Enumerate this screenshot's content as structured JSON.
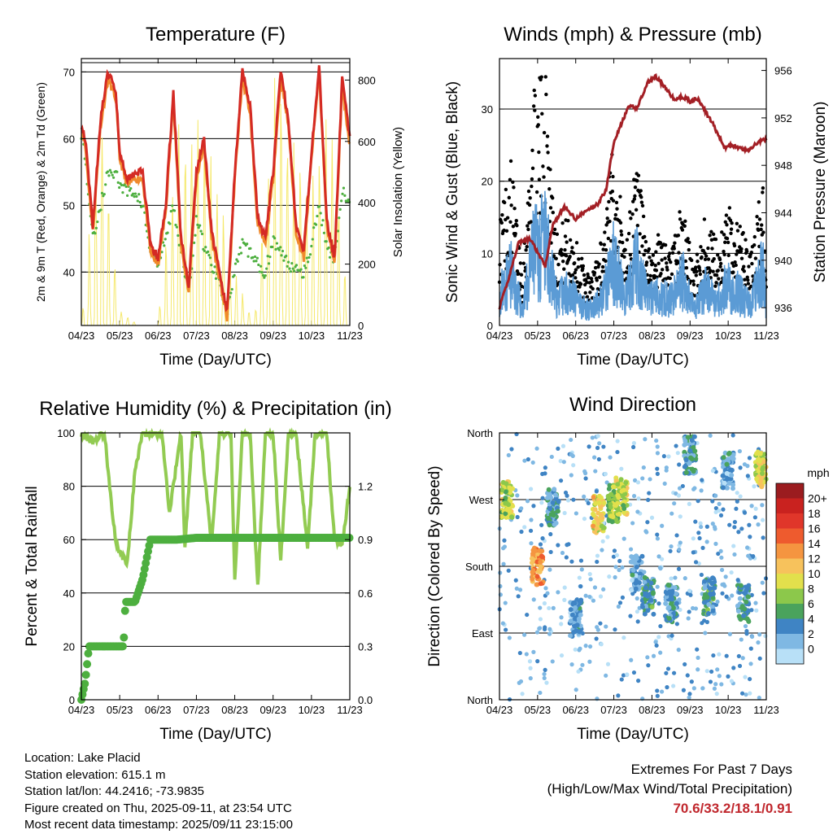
{
  "x_ticks": [
    "04/23",
    "05/23",
    "06/23",
    "07/23",
    "08/23",
    "09/23",
    "10/23",
    "11/23"
  ],
  "x_label": "Time (Day/UTC)",
  "colors": {
    "temp2m": "#f08a2c",
    "temp9m": "#d42a24",
    "dewpoint": "#4daf3f",
    "solar": "#f5e86a",
    "gust": "#000000",
    "wind": "#5b9bd5",
    "pressure": "#a31f25",
    "rh": "#92cb52",
    "precip": "#4daf3f"
  },
  "chart_data": [
    {
      "type": "line",
      "title": "Temperature (F)",
      "xlabel": "Time (Day/UTC)",
      "ylabel": "2m & 9m T (Red, Orange) & 2m Td (Green)",
      "ylabel_right": "Solar Insolation (Yellow)",
      "ylim": [
        32,
        72
      ],
      "yticks": [
        40,
        50,
        60,
        70
      ],
      "ylim_right": [
        0,
        870
      ],
      "yticks_right": [
        0,
        200,
        400,
        600,
        800
      ],
      "x_months": [
        0,
        1,
        2,
        3,
        4,
        5,
        6,
        7
      ],
      "series": [
        {
          "key": "t9m",
          "x": [
            0,
            0.1,
            0.3,
            0.5,
            0.7,
            0.9,
            1.0,
            1.2,
            1.4,
            1.6,
            1.8,
            2.0,
            2.2,
            2.4,
            2.6,
            2.8,
            3.0,
            3.2,
            3.4,
            3.6,
            3.8,
            4.0,
            4.2,
            4.4,
            4.6,
            4.8,
            5.0,
            5.2,
            5.4,
            5.6,
            5.8,
            6.0,
            6.2,
            6.4,
            6.6,
            6.8,
            7.0
          ],
          "values": [
            62,
            60,
            47,
            63,
            70,
            67,
            58,
            54,
            55,
            55,
            44,
            42,
            50,
            67,
            45,
            38,
            55,
            60,
            46,
            40,
            34,
            55,
            70,
            65,
            48,
            45,
            55,
            70,
            63,
            47,
            43,
            58,
            71,
            48,
            42,
            69,
            60
          ]
        },
        {
          "key": "t2m",
          "x": [
            0,
            0.1,
            0.3,
            0.5,
            0.7,
            0.9,
            1.0,
            1.2,
            1.4,
            1.6,
            1.8,
            2.0,
            2.2,
            2.4,
            2.6,
            2.8,
            3.0,
            3.2,
            3.4,
            3.6,
            3.8,
            4.0,
            4.2,
            4.4,
            4.6,
            4.8,
            5.0,
            5.2,
            5.4,
            5.6,
            5.8,
            6.0,
            6.2,
            6.4,
            6.6,
            6.8,
            7.0
          ],
          "values": [
            62,
            59,
            46,
            62,
            69,
            66,
            57,
            53,
            54,
            54,
            43,
            41,
            49,
            66,
            44,
            37,
            54,
            59,
            45,
            39,
            33,
            54,
            69,
            64,
            47,
            44,
            54,
            69,
            62,
            46,
            42,
            57,
            70,
            47,
            41,
            68,
            59
          ]
        },
        {
          "key": "td2m",
          "x": [
            0,
            0.1,
            0.3,
            0.5,
            0.7,
            0.9,
            1.0,
            1.2,
            1.4,
            1.6,
            1.8,
            2.0,
            2.2,
            2.4,
            2.6,
            2.8,
            3.0,
            3.2,
            3.4,
            3.6,
            3.8,
            4.0,
            4.2,
            4.4,
            4.6,
            4.8,
            5.0,
            5.2,
            5.4,
            5.6,
            5.8,
            6.0,
            6.2,
            6.4,
            6.6,
            6.8,
            7.0
          ],
          "values": [
            61,
            57,
            45,
            50,
            55,
            55,
            53,
            52,
            52,
            50,
            43,
            41,
            45,
            50,
            43,
            37,
            48,
            44,
            41,
            39,
            34,
            40,
            44,
            43,
            41,
            40,
            45,
            43,
            41,
            41,
            40,
            44,
            50,
            44,
            42,
            52,
            50
          ]
        },
        {
          "key": "solar",
          "axis": "right",
          "x": [
            0,
            0.5,
            1.0,
            1.5,
            2.0,
            2.5,
            3.0,
            3.5,
            4.0,
            4.5,
            5.0,
            5.5,
            6.0,
            6.5,
            7.0
          ],
          "values": [
            0,
            850,
            60,
            0,
            0,
            800,
            700,
            600,
            200,
            0,
            820,
            780,
            500,
            860,
            0
          ]
        }
      ]
    },
    {
      "type": "line",
      "title": "Winds (mph) & Pressure (mb)",
      "xlabel": "Time (Day/UTC)",
      "ylabel": "Sonic Wind & Gust (Blue, Black)",
      "ylabel_right": "Station Pressure (Maroon)",
      "ylim": [
        0,
        37
      ],
      "yticks": [
        0,
        10,
        20,
        30
      ],
      "ylim_right": [
        934.5,
        957
      ],
      "yticks_right": [
        936,
        940,
        944,
        948,
        952,
        956
      ],
      "series": [
        {
          "key": "gust",
          "x": [
            0,
            0.3,
            0.6,
            0.9,
            1.2,
            1.5,
            1.8,
            2.1,
            2.4,
            2.7,
            3.0,
            3.3,
            3.6,
            3.9,
            4.2,
            4.5,
            4.8,
            5.1,
            5.4,
            5.7,
            6.0,
            6.3,
            6.6,
            6.9,
            7.0
          ],
          "values": [
            12,
            18,
            6,
            25,
            28,
            10,
            12,
            8,
            5,
            10,
            20,
            9,
            18,
            8,
            10,
            8,
            14,
            6,
            12,
            9,
            13,
            11,
            8,
            16,
            8
          ]
        },
        {
          "key": "wind",
          "x": [
            0,
            0.3,
            0.6,
            0.9,
            1.2,
            1.5,
            1.8,
            2.1,
            2.4,
            2.7,
            3.0,
            3.3,
            3.6,
            3.9,
            4.2,
            4.5,
            4.8,
            5.1,
            5.4,
            5.7,
            6.0,
            6.3,
            6.6,
            6.9,
            7.0
          ],
          "values": [
            6,
            10,
            3,
            14,
            16,
            5,
            7,
            4,
            3,
            5,
            13,
            5,
            12,
            5,
            6,
            5,
            9,
            3,
            7,
            5,
            8,
            6,
            4,
            11,
            4
          ]
        },
        {
          "key": "pressure",
          "axis": "right",
          "x": [
            0,
            0.2,
            0.5,
            0.8,
            1.2,
            1.4,
            1.7,
            2.0,
            2.3,
            2.6,
            2.8,
            3.0,
            3.4,
            3.6,
            3.9,
            4.1,
            4.6,
            4.8,
            5.0,
            5.2,
            5.6,
            5.9,
            6.1,
            6.5,
            6.8,
            7.0
          ],
          "values": [
            936,
            938,
            941.5,
            941.8,
            939.5,
            943,
            944.5,
            943.5,
            944.2,
            944.8,
            946,
            950,
            953,
            952.8,
            955,
            955.5,
            953.5,
            953.8,
            953.4,
            953.6,
            951.5,
            949.5,
            949.7,
            949.2,
            950,
            950.2
          ]
        }
      ]
    },
    {
      "type": "line",
      "title": "Relative Humidity (%) & Precipitation (in)",
      "xlabel": "Time (Day/UTC)",
      "ylabel": "Percent & Total Rainfall",
      "ylim": [
        0,
        100
      ],
      "yticks": [
        0,
        20,
        40,
        60,
        80,
        100
      ],
      "ylim_right": [
        0,
        1.5
      ],
      "yticks_right": [
        "0.0",
        "0.3",
        "0.6",
        "0.9",
        "1.2"
      ],
      "series": [
        {
          "key": "rh",
          "x": [
            0,
            0.3,
            0.6,
            0.9,
            1.2,
            1.4,
            1.6,
            1.8,
            2.1,
            2.3,
            2.6,
            2.7,
            2.9,
            3.1,
            3.4,
            3.6,
            3.9,
            4.0,
            4.2,
            4.4,
            4.6,
            4.8,
            5.0,
            5.2,
            5.4,
            5.6,
            5.9,
            6.1,
            6.4,
            6.6,
            6.8,
            7.0
          ],
          "values": [
            100,
            97,
            100,
            58,
            51,
            86,
            100,
            100,
            100,
            70,
            100,
            57,
            100,
            100,
            58,
            100,
            100,
            45,
            100,
            100,
            42,
            100,
            100,
            52,
            100,
            100,
            57,
            100,
            100,
            60,
            58,
            80
          ]
        },
        {
          "key": "precip",
          "axis": "right",
          "x": [
            0,
            0.1,
            0.2,
            1.1,
            1.15,
            1.3,
            1.4,
            1.6,
            1.8,
            2.0,
            2.5,
            3.0,
            4.0,
            5.0,
            6.0,
            7.0
          ],
          "values": [
            0,
            0.1,
            0.3,
            0.3,
            0.55,
            0.55,
            0.55,
            0.68,
            0.9,
            0.9,
            0.9,
            0.91,
            0.91,
            0.91,
            0.91,
            0.91
          ]
        }
      ]
    },
    {
      "type": "scatter",
      "title": "Wind Direction",
      "xlabel": "Time (Day/UTC)",
      "ylabel": "Direction (Colored By Speed)",
      "ylim": [
        0,
        360
      ],
      "yticks": [
        "North",
        "East",
        "South",
        "West",
        "North"
      ],
      "colorbar": {
        "title": "mph",
        "labels": [
          "20+",
          "18",
          "16",
          "14",
          "12",
          "10",
          "8",
          "6",
          "4",
          "2",
          "0"
        ],
        "colors": [
          "#9b1c1f",
          "#c9221f",
          "#e0362a",
          "#ee5b2e",
          "#f59540",
          "#f7c25c",
          "#e2e04c",
          "#8cc84b",
          "#4aa35c",
          "#3f84c4",
          "#7fb8e3",
          "#b8e0f7"
        ]
      },
      "clusters": [
        {
          "x": 0.2,
          "dir": 270,
          "speed": 9
        },
        {
          "x": 1.0,
          "dir": 180,
          "speed": 14
        },
        {
          "x": 1.4,
          "dir": 260,
          "speed": 4
        },
        {
          "x": 2.0,
          "dir": 110,
          "speed": 3
        },
        {
          "x": 2.6,
          "dir": 250,
          "speed": 11
        },
        {
          "x": 3.0,
          "dir": 265,
          "speed": 8
        },
        {
          "x": 3.2,
          "dir": 275,
          "speed": 9
        },
        {
          "x": 3.6,
          "dir": 170,
          "speed": 3
        },
        {
          "x": 3.9,
          "dir": 140,
          "speed": 5
        },
        {
          "x": 4.5,
          "dir": 130,
          "speed": 4
        },
        {
          "x": 5.0,
          "dir": 330,
          "speed": 4
        },
        {
          "x": 5.5,
          "dir": 140,
          "speed": 5
        },
        {
          "x": 6.0,
          "dir": 310,
          "speed": 3
        },
        {
          "x": 6.4,
          "dir": 130,
          "speed": 4
        },
        {
          "x": 6.85,
          "dir": 310,
          "speed": 10
        }
      ]
    }
  ],
  "info": {
    "location": "Location: Lake Placid",
    "elevation": "Station elevation: 615.1 m",
    "latlon": "Station lat/lon: 44.2416; -73.9835",
    "created": "Figure created on Thu, 2025-09-11, at 23:54 UTC",
    "recent": "Most recent data timestamp: 2025/09/11 23:15:00"
  },
  "extremes": {
    "title": "Extremes For Past 7 Days",
    "subtitle": "(High/Low/Max Wind/Total Precipitation)",
    "values": "70.6/33.2/18.1/0.91"
  }
}
